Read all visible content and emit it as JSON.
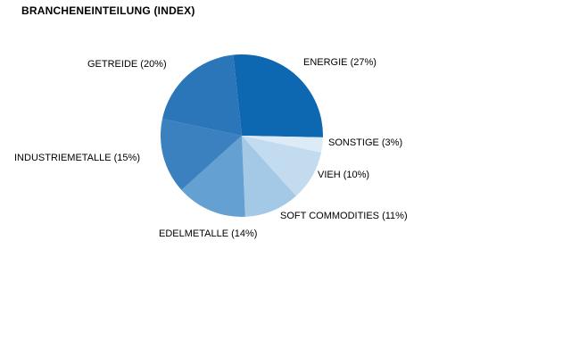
{
  "title": "BRANCHENEINTEILUNG (INDEX)",
  "chart_data": {
    "type": "pie",
    "title": "BRANCHENEINTEILUNG (INDEX)",
    "legend_position": "none",
    "labels_on_chart": true,
    "slices": [
      {
        "name": "ENERGIE",
        "value": 27,
        "label": "ENERGIE (27%)",
        "color": "#0d68b1"
      },
      {
        "name": "SONSTIGE",
        "value": 3,
        "label": "SONSTIGE (3%)",
        "color": "#dcebf6"
      },
      {
        "name": "VIEH",
        "value": 10,
        "label": "VIEH (10%)",
        "color": "#c3dbef"
      },
      {
        "name": "SOFT COMMODITIES",
        "value": 11,
        "label": "SOFT COMMODITIES (11%)",
        "color": "#a4c9e7"
      },
      {
        "name": "EDELMETALLE",
        "value": 14,
        "label": "EDELMETALLE (14%)",
        "color": "#65a0d2"
      },
      {
        "name": "INDUSTRIEMETALLE",
        "value": 15,
        "label": "INDUSTRIEMETALLE (15%)",
        "color": "#3b80bf"
      },
      {
        "name": "GETREIDE",
        "value": 20,
        "label": "GETREIDE (20%)",
        "color": "#2a76b8"
      }
    ]
  }
}
